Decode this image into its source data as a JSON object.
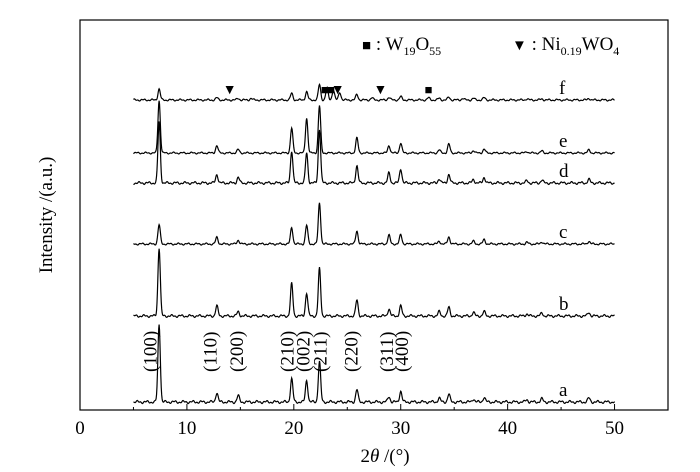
{
  "chart_data": {
    "type": "line",
    "title": "",
    "xlabel_prefix": "2",
    "xlabel_theta": "θ",
    "xlabel_suffix": " /(°)",
    "ylabel": "Intensity /(a.u.)",
    "xlim": [
      0,
      55
    ],
    "x_ticks": [
      0,
      10,
      20,
      30,
      40,
      50
    ],
    "x_range_measured": [
      5,
      50
    ],
    "y_ticks_shown": false,
    "grid": false,
    "legend": [
      {
        "marker": "■",
        "label_base": "W",
        "sub1": "19",
        "mid": "O",
        "sub2": "55",
        "color": "#000000"
      },
      {
        "marker": "▼",
        "label_base": "Ni",
        "sub1": "0.19",
        "mid": "WO",
        "sub2": "4",
        "color": "#000000"
      }
    ],
    "legend_placement": "top-right",
    "peaks_2theta": [
      7.4,
      12.8,
      14.8,
      19.8,
      21.2,
      22.4,
      25.9,
      28.9,
      30.0,
      33.6,
      34.5,
      36.8,
      37.8,
      41.8,
      43.2,
      47.6
    ],
    "series": [
      {
        "name": "a",
        "intensity": [
          1.0,
          0.12,
          0.08,
          0.3,
          0.28,
          0.52,
          0.16,
          0.07,
          0.14,
          0.05,
          0.1,
          0.04,
          0.06,
          0.03,
          0.04,
          0.05
        ]
      },
      {
        "name": "b",
        "intensity": [
          0.95,
          0.14,
          0.06,
          0.45,
          0.32,
          0.66,
          0.22,
          0.1,
          0.14,
          0.06,
          0.12,
          0.05,
          0.06,
          0.03,
          0.04,
          0.05
        ]
      },
      {
        "name": "c",
        "intensity": [
          0.35,
          0.12,
          0.07,
          0.3,
          0.34,
          0.75,
          0.24,
          0.16,
          0.17,
          0.05,
          0.13,
          0.05,
          0.08,
          0.03,
          0.04,
          0.05
        ]
      },
      {
        "name": "d",
        "intensity": [
          0.85,
          0.12,
          0.08,
          0.45,
          0.42,
          0.75,
          0.24,
          0.14,
          0.2,
          0.06,
          0.12,
          0.05,
          0.08,
          0.03,
          0.04,
          0.05
        ]
      },
      {
        "name": "e",
        "intensity": [
          1.05,
          0.15,
          0.07,
          0.5,
          0.7,
          0.95,
          0.3,
          0.15,
          0.2,
          0.06,
          0.18,
          0.05,
          0.08,
          0.03,
          0.04,
          0.06
        ]
      },
      {
        "name": "f",
        "intensity": [
          0.2,
          0.04,
          0.03,
          0.12,
          0.15,
          0.28,
          0.1,
          0.05,
          0.06,
          0.03,
          0.05,
          0.03,
          0.04,
          0.02,
          0.02,
          0.03
        ]
      }
    ],
    "f_extra_peaks": [
      {
        "x": 23.1,
        "h": 0.22
      },
      {
        "x": 23.7,
        "h": 0.18
      },
      {
        "x": 24.3,
        "h": 0.14
      },
      {
        "x": 16.0,
        "h": 0.03
      },
      {
        "x": 27.3,
        "h": 0.04
      },
      {
        "x": 32.6,
        "h": 0.04
      },
      {
        "x": 35.8,
        "h": 0.03
      }
    ],
    "f_markers": [
      {
        "symbol": "▼",
        "x": 14.0
      },
      {
        "symbol": "■",
        "x": 22.9
      },
      {
        "symbol": "■",
        "x": 23.5
      },
      {
        "symbol": "▼",
        "x": 24.1
      },
      {
        "symbol": "▼",
        "x": 28.1
      },
      {
        "symbol": "■",
        "x": 32.6
      }
    ],
    "annotations": [
      {
        "text": "(100)",
        "x": 6.6
      },
      {
        "text": "(110)",
        "x": 12.2
      },
      {
        "text": "(200)",
        "x": 14.7
      },
      {
        "text": "(210)",
        "x": 19.4
      },
      {
        "text": "(002)",
        "x": 20.9
      },
      {
        "text": "(211)",
        "x": 22.5
      },
      {
        "text": "(220)",
        "x": 25.4
      },
      {
        "text": "(311)",
        "x": 28.7
      },
      {
        "text": "(400)",
        "x": 30.1
      }
    ]
  }
}
